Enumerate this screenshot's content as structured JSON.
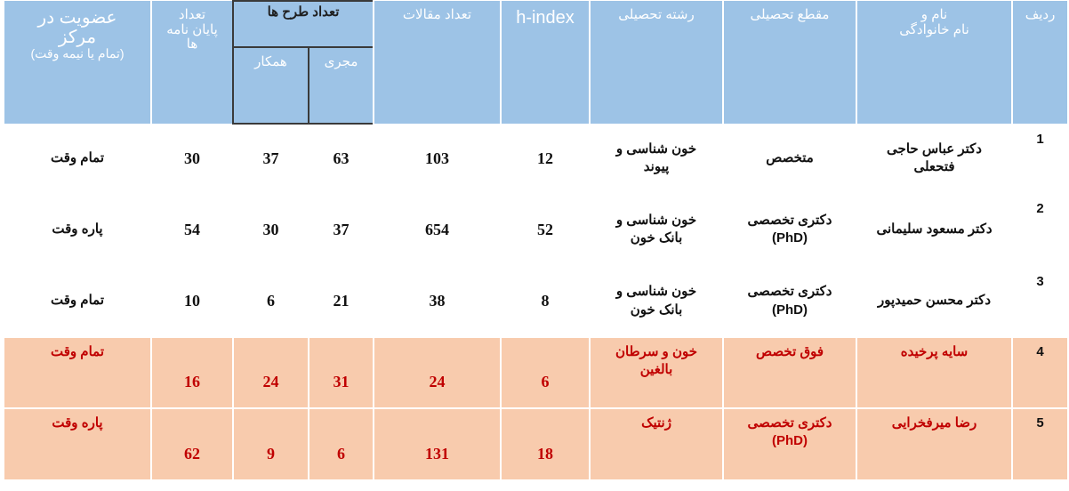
{
  "header": {
    "row_number": "ردیف",
    "name": "نام و\nنام خانوادگی",
    "degree": "مقطع تحصیلی",
    "field": "رشته تحصیلی",
    "h_index": "h-index",
    "articles": "تعداد مقالات",
    "projects": "تعداد طرح ها",
    "lead": "مجری",
    "collaborator": "همکار",
    "theses": "تعداد\nپایان نامه\nها",
    "membership": "عضویت در\nمرکز",
    "membership_note": "(تمام یا نیمه وقت)"
  },
  "rows": [
    [
      1,
      "دکتر عباس حاجی\nفتحعلی",
      "متخصص",
      "خون شناسی و\nپیوند",
      12,
      103,
      63,
      37,
      30,
      "تمام وقت"
    ],
    [
      2,
      "دکتر مسعود سلیمانی",
      "دکتری تخصصی\n(PhD)",
      "خون شناسی و\nبانک خون",
      52,
      654,
      37,
      30,
      54,
      "پاره وقت"
    ],
    [
      3,
      "دکتر محسن حمیدپور",
      "دکتری تخصصی\n(PhD)",
      "خون شناسی و\nبانک خون",
      8,
      38,
      21,
      6,
      10,
      "تمام وقت"
    ],
    [
      4,
      "سایه پرخیده",
      "فوق تخصص",
      "خون و سرطان\nبالغین",
      6,
      24,
      31,
      24,
      16,
      "تمام وقت"
    ],
    [
      5,
      "رضا میرفخرایی",
      "دکتری تخصصی\n(PhD)",
      "ژنتیک",
      18,
      131,
      6,
      9,
      62,
      "پاره وقت"
    ]
  ]
}
